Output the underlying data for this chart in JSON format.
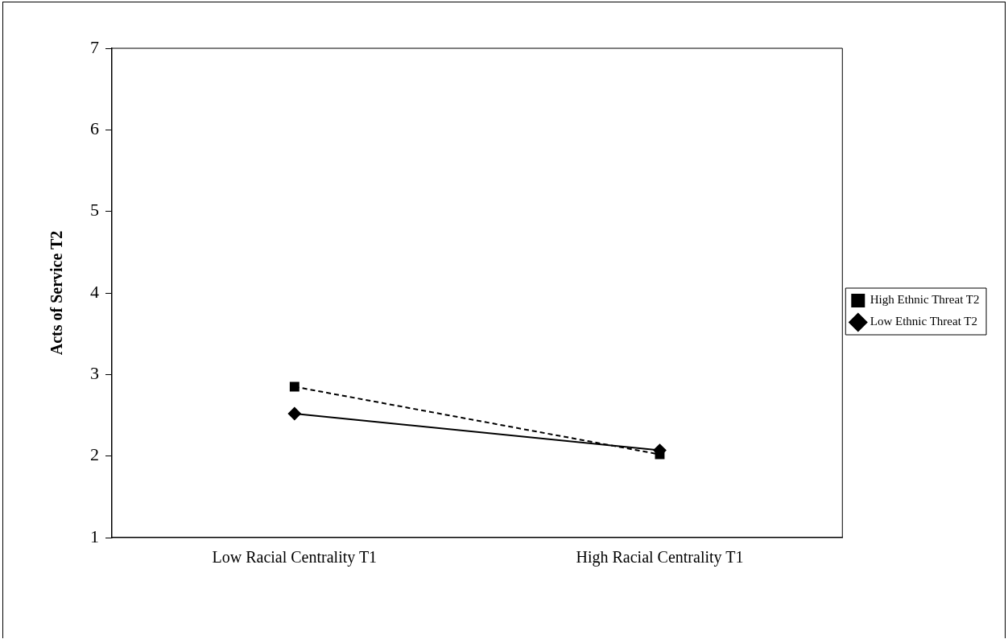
{
  "chart_data": {
    "type": "line",
    "ylabel": "Acts of Service T2",
    "categories": [
      "Low Racial Centrality T1",
      "High Racial Centrality T1"
    ],
    "ylim": [
      1,
      7
    ],
    "yticks": [
      1,
      2,
      3,
      4,
      5,
      6,
      7
    ],
    "grid": false,
    "legend": "right",
    "series": [
      {
        "name": "Low Ethnic Threat T2",
        "color": "#000000",
        "values": [
          2.52,
          2.07
        ],
        "marker": "diamond",
        "line_style": "solid"
      },
      {
        "name": "High Ethnic Threat T2",
        "color": "#000000",
        "values": [
          2.85,
          2.02
        ],
        "marker": "square",
        "line_style": "dashed"
      }
    ]
  }
}
